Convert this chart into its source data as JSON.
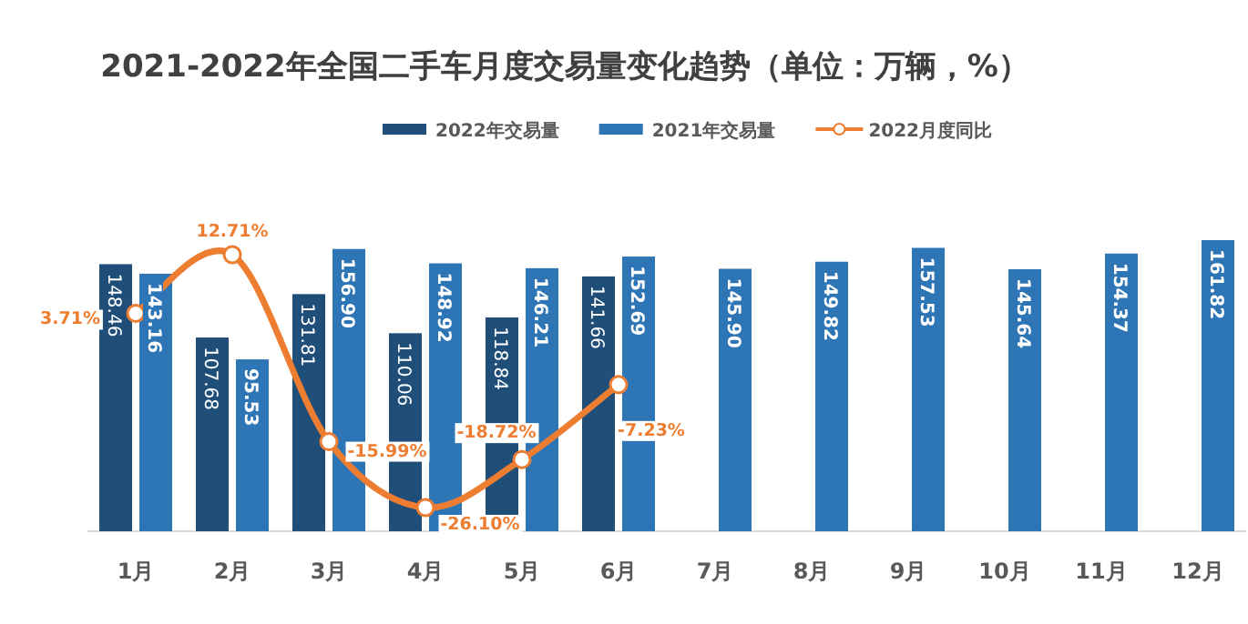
{
  "chart_data": {
    "type": "bar",
    "title": "2021-2022年全国二手车月度交易量变化趋势（单位：万辆，%）",
    "categories": [
      "1月",
      "2月",
      "3月",
      "4月",
      "5月",
      "6月",
      "7月",
      "8月",
      "9月",
      "10月",
      "11月",
      "12月"
    ],
    "series": [
      {
        "name": "2022年交易量",
        "color": "#1f4e79",
        "values": [
          148.46,
          107.68,
          131.81,
          110.06,
          118.84,
          141.66,
          null,
          null,
          null,
          null,
          null,
          null
        ],
        "value_labels": [
          "148.46",
          "107.68",
          "131.81",
          "110.06",
          "118.84",
          "141.66",
          null,
          null,
          null,
          null,
          null,
          null
        ]
      },
      {
        "name": "2021年交易量",
        "color": "#2e75b6",
        "values": [
          143.16,
          95.53,
          156.9,
          148.92,
          146.21,
          152.69,
          145.9,
          149.82,
          157.53,
          145.64,
          154.37,
          161.82
        ],
        "value_labels": [
          "143.16",
          "95.53",
          "156.90",
          "148.92",
          "146.21",
          "152.69",
          "145.90",
          "149.82",
          "157.53",
          "145.64",
          "154.37",
          "161.82"
        ]
      },
      {
        "name": "2022月度同比",
        "type": "line",
        "axis": "y2",
        "color": "#ed7d31",
        "marker": "circle",
        "values": [
          3.71,
          12.71,
          -15.99,
          -26.1,
          -18.72,
          -7.23,
          null,
          null,
          null,
          null,
          null,
          null
        ],
        "value_labels": [
          "3.71%",
          "12.71%",
          "-15.99%",
          "-26.10%",
          "-18.72%",
          "-7.23%",
          null,
          null,
          null,
          null,
          null,
          null
        ]
      }
    ],
    "tick_labels": "x",
    "legend": "top"
  }
}
